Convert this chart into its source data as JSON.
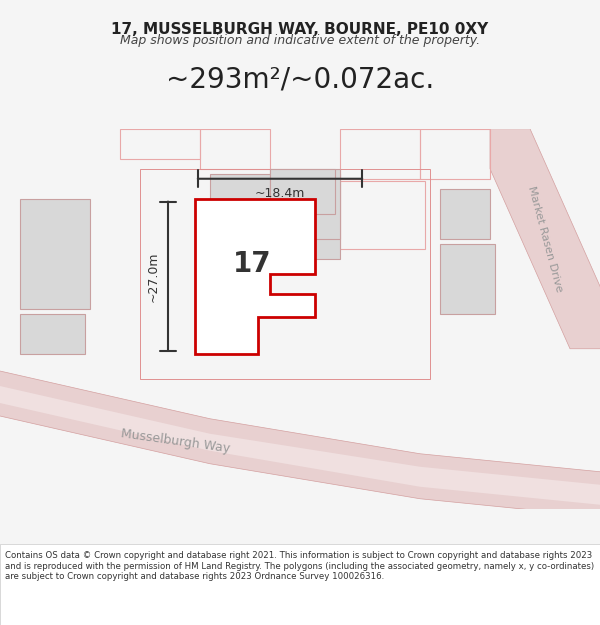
{
  "title_line1": "17, MUSSELBURGH WAY, BOURNE, PE10 0XY",
  "title_line2": "Map shows position and indicative extent of the property.",
  "area_text": "~293m²/~0.072ac.",
  "number_label": "17",
  "dim_width": "~18.4m",
  "dim_height": "~27.0m",
  "street_label1": "Musselburgh Way",
  "street_label2": "Market Rasen Drive",
  "footer_text": "Contains OS data © Crown copyright and database right 2021. This information is subject to Crown copyright and database rights 2023 and is reproduced with the permission of HM Land Registry. The polygons (including the associated geometry, namely x, y co-ordinates) are subject to Crown copyright and database rights 2023 Ordnance Survey 100026316.",
  "bg_color": "#f5f5f5",
  "map_bg": "#f0f0f0",
  "road_color": "#e8c8c8",
  "building_fill": "#d8d8d8",
  "plot_stroke": "#cc0000",
  "plot_fill": "#ffffff",
  "dim_color": "#333333",
  "text_color": "#333333",
  "road_fill": "#f5f5f5"
}
